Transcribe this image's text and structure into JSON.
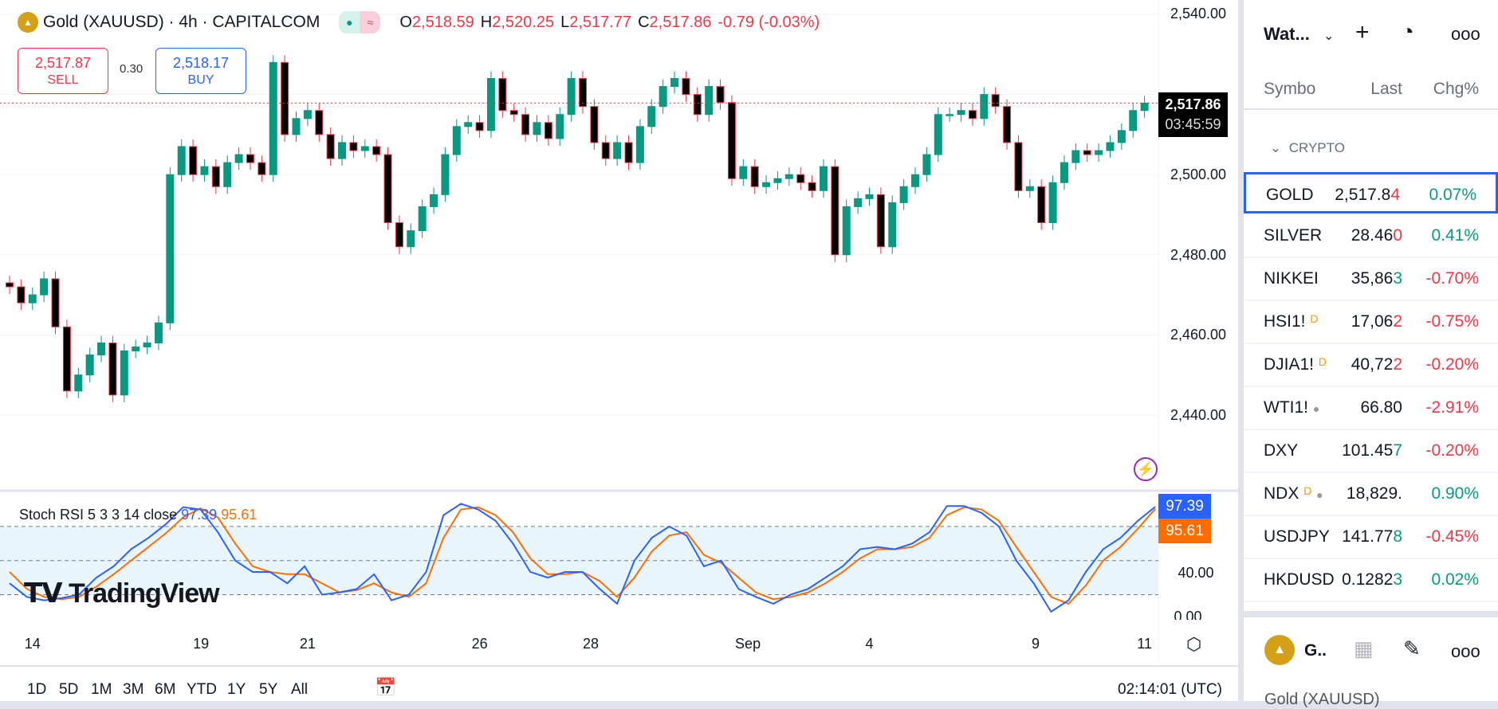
{
  "header": {
    "symbol": "Gold (XAUUSD) · 4h · CAPITALCOM",
    "o_label": "O",
    "o": "2,518.59",
    "h_label": "H",
    "h": "2,520.25",
    "l_label": "L",
    "l": "2,517.77",
    "c_label": "C",
    "c": "2,517.86",
    "change": "-0.79 (-0.03%)"
  },
  "trade": {
    "sell_price": "2,517.87",
    "sell_label": "SELL",
    "spread": "0.30",
    "buy_price": "2,518.17",
    "buy_label": "BUY"
  },
  "price_axis": {
    "ticks": [
      "2,540.00",
      "2,500.00",
      "2,480.00",
      "2,460.00",
      "2,440.00"
    ],
    "last_price": "2,517.86",
    "countdown": "03:45:59"
  },
  "colors": {
    "up": "#089981",
    "down": "#f23645",
    "stoch_k": "#2962ff",
    "stoch_d": "#ff6d00",
    "accent": "#2962ff"
  },
  "chart_data": {
    "type": "candlestick",
    "ylim": [
      2420,
      2543
    ],
    "close": [
      2472,
      2468,
      2470,
      2474,
      2462,
      2446,
      2450,
      2455,
      2458,
      2445,
      2456,
      2457,
      2458,
      2463,
      2500,
      2507,
      2500,
      2502,
      2497,
      2503,
      2505,
      2503,
      2500,
      2528,
      2510,
      2514,
      2516,
      2510,
      2504,
      2508,
      2506,
      2507,
      2505,
      2488,
      2482,
      2486,
      2492,
      2495,
      2505,
      2512,
      2513,
      2511,
      2524,
      2516,
      2515,
      2510,
      2513,
      2509,
      2515,
      2524,
      2517,
      2508,
      2504,
      2508,
      2503,
      2512,
      2517,
      2522,
      2524,
      2520,
      2515,
      2522,
      2518,
      2499,
      2502,
      2497,
      2498,
      2499,
      2500,
      2498,
      2496,
      2502,
      2480,
      2492,
      2494,
      2495,
      2482,
      2493,
      2497,
      2500,
      2505,
      2515,
      2515,
      2516,
      2514,
      2520,
      2517,
      2508,
      2496,
      2497,
      2488,
      2498,
      2503,
      2506,
      2505,
      2506,
      2508,
      2511,
      2516,
      2517.86
    ],
    "x_labels": [
      {
        "label": "14",
        "at_candle": 2
      },
      {
        "label": "19",
        "at_candle": 16.7
      },
      {
        "label": "21",
        "at_candle": 26
      },
      {
        "label": "26",
        "at_candle": 41
      },
      {
        "label": "28",
        "at_candle": 50.7
      },
      {
        "label": "Sep",
        "at_candle": 64.4
      },
      {
        "label": "4",
        "at_candle": 75
      },
      {
        "label": "9",
        "at_candle": 89.5
      },
      {
        "label": "11",
        "at_candle": 99
      }
    ]
  },
  "stoch": {
    "legend": "Stoch RSI 5 3 3 14 close",
    "k": "97.39",
    "d": "95.61",
    "axis": [
      "40.00",
      "0.00"
    ],
    "levels": [
      80,
      50,
      20
    ],
    "k_series": [
      30,
      18,
      15,
      17,
      20,
      35,
      45,
      60,
      70,
      82,
      97,
      95,
      75,
      50,
      40,
      40,
      30,
      45,
      20,
      22,
      25,
      38,
      15,
      20,
      40,
      90,
      100,
      95,
      85,
      65,
      40,
      35,
      40,
      40,
      25,
      12,
      50,
      70,
      80,
      72,
      45,
      50,
      25,
      18,
      12,
      20,
      25,
      35,
      45,
      60,
      62,
      60,
      65,
      75,
      98,
      98,
      92,
      80,
      50,
      30,
      5,
      15,
      40,
      60,
      70,
      85,
      97.39
    ],
    "d_series": [
      40,
      25,
      18,
      16,
      18,
      27,
      38,
      50,
      62,
      74,
      88,
      96,
      88,
      65,
      45,
      40,
      38,
      38,
      30,
      22,
      24,
      30,
      22,
      18,
      30,
      70,
      95,
      97,
      90,
      75,
      52,
      38,
      38,
      40,
      32,
      18,
      35,
      58,
      72,
      75,
      55,
      48,
      35,
      22,
      16,
      18,
      22,
      30,
      40,
      52,
      60,
      60,
      62,
      70,
      90,
      97,
      95,
      85,
      62,
      40,
      18,
      12,
      28,
      50,
      62,
      78,
      95.61
    ]
  },
  "time_axis": {
    "ranges": [
      "1D",
      "5D",
      "1M",
      "3M",
      "6M",
      "YTD",
      "1Y",
      "5Y",
      "All"
    ],
    "clock": "02:14:01 (UTC)"
  },
  "watermark": "TradingView",
  "watchlist": {
    "title": "Wat...",
    "columns": [
      "Symbo",
      "Last",
      "Chg%"
    ],
    "group": "CRYPTO",
    "rows": [
      {
        "symbol": "GOLD",
        "last": "2,517.8",
        "last_tail": "4",
        "chg": "0.07%",
        "dir": "up",
        "tail_dir": "dn"
      },
      {
        "symbol": "SILVER",
        "last": "28.46",
        "last_tail": "0",
        "chg": "0.41%",
        "dir": "up",
        "tail_dir": "dn"
      },
      {
        "symbol": "NIKKEI",
        "last": "35,86",
        "last_tail": "3",
        "chg": "-0.70%",
        "dir": "dn",
        "tail_dir": "up"
      },
      {
        "symbol": "HSI1!",
        "badge": "D",
        "last": "17,06",
        "last_tail": "2",
        "chg": "-0.75%",
        "dir": "dn",
        "tail_dir": "dn"
      },
      {
        "symbol": "DJIA1!",
        "badge": "D",
        "last": "40,72",
        "last_tail": "2",
        "chg": "-0.20%",
        "dir": "dn",
        "tail_dir": "dn"
      },
      {
        "symbol": "WTI1!",
        "dot": "●",
        "last": "66.80",
        "last_tail": "",
        "chg": "-2.91%",
        "dir": "dn",
        "tail_dir": "dn"
      },
      {
        "symbol": "DXY",
        "last": "101.45",
        "last_tail": "7",
        "chg": "-0.20%",
        "dir": "dn",
        "tail_dir": "up"
      },
      {
        "symbol": "NDX",
        "badge": "D",
        "dot": "●",
        "last": "18,829.",
        "last_tail": "",
        "chg": "0.90%",
        "dir": "up",
        "tail_dir": "up"
      },
      {
        "symbol": "USDJPY",
        "last": "141.77",
        "last_tail": "8",
        "chg": "-0.45%",
        "dir": "dn",
        "tail_dir": "up"
      },
      {
        "symbol": "HKDUSD",
        "last": "0.1282",
        "last_tail": "3",
        "chg": "0.02%",
        "dir": "up",
        "tail_dir": "up"
      }
    ]
  },
  "details": {
    "short_name": "G..",
    "full_name": "Gold (XAUUSD)"
  }
}
